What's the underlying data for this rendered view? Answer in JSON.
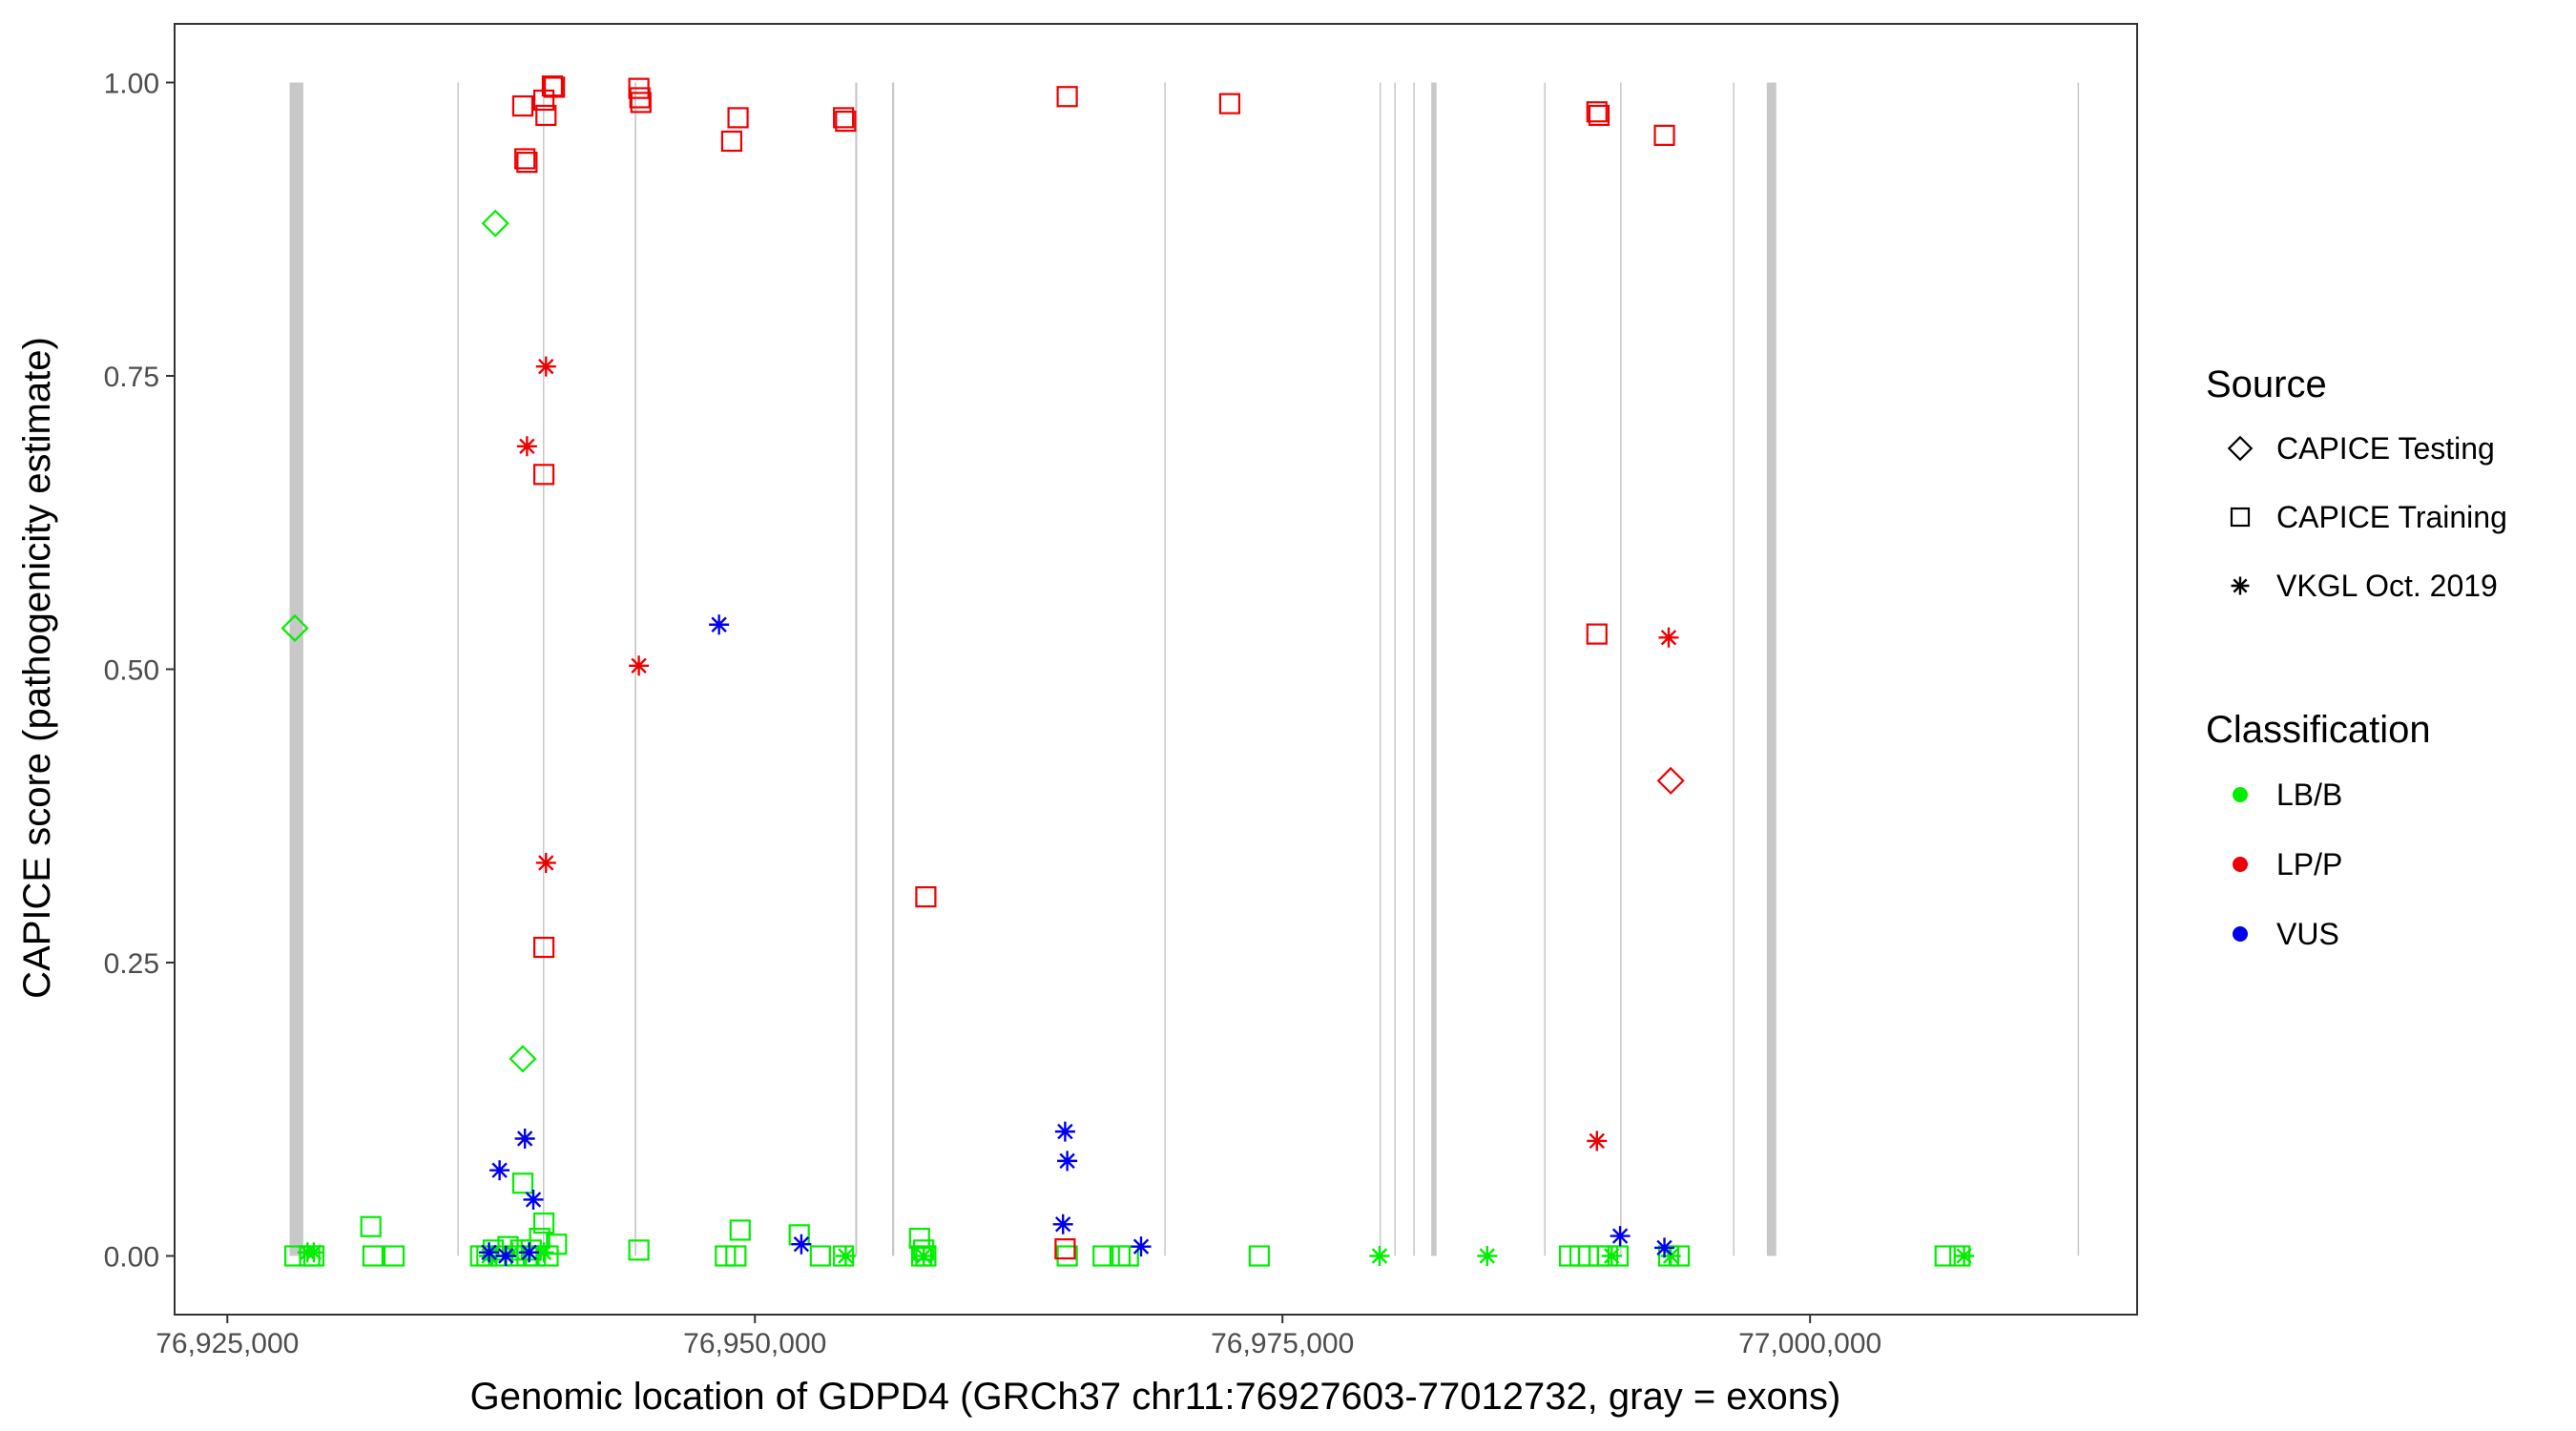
{
  "chart_data": {
    "type": "scatter",
    "xlabel": "Genomic location of GDPD4 (GRCh37 chr11:76927603-77012732, gray = exons)",
    "ylabel": "CAPICE score (pathogenicity estimate)",
    "xlim": [
      76922500,
      77015500
    ],
    "ylim": [
      -0.05,
      1.05
    ],
    "x_ticks": [
      76925000,
      76950000,
      76975000,
      77000000
    ],
    "x_tick_labels": [
      "76,925,000",
      "76,950,000",
      "76,975,000",
      "77,000,000"
    ],
    "y_ticks": [
      0,
      0.25,
      0.5,
      0.75,
      1.0
    ],
    "y_tick_labels": [
      "0.00",
      "0.25",
      "0.50",
      "0.75",
      "1.00"
    ],
    "grid": false,
    "exons": [
      [
        76927950,
        76928600
      ],
      [
        76935900,
        76935960
      ],
      [
        76939950,
        76940010
      ],
      [
        76944300,
        76944380
      ],
      [
        76954750,
        76954850
      ],
      [
        76956500,
        76956600
      ],
      [
        76969400,
        76969450
      ],
      [
        76979600,
        76979650
      ],
      [
        76980300,
        76980360
      ],
      [
        76981200,
        76981260
      ],
      [
        76982050,
        76982300
      ],
      [
        76987400,
        76987450
      ],
      [
        76991000,
        76991060
      ],
      [
        76996350,
        76996400
      ],
      [
        76997950,
        76998400
      ],
      [
        77012680,
        77012732
      ]
    ],
    "legend": {
      "position": "right",
      "source_title": "Source",
      "source": [
        {
          "label": "CAPICE Testing",
          "shape": "diamond"
        },
        {
          "label": "CAPICE Training",
          "shape": "square"
        },
        {
          "label": "VKGL Oct. 2019",
          "shape": "asterisk"
        }
      ],
      "classification_title": "Classification",
      "classification": [
        {
          "label": "LB/B",
          "color": "#00ee00"
        },
        {
          "label": "LP/P",
          "color": "#ee0000"
        },
        {
          "label": "VUS",
          "color": "#0000ee"
        }
      ]
    },
    "series": [
      {
        "source": "CAPICE Testing",
        "classification": "LB/B",
        "points": [
          [
            76928200,
            0.535
          ],
          [
            76937700,
            0.88
          ],
          [
            76939000,
            0.168
          ]
        ]
      },
      {
        "source": "CAPICE Testing",
        "classification": "LP/P",
        "points": [
          [
            76993400,
            0.405
          ]
        ]
      },
      {
        "source": "CAPICE Training",
        "classification": "LB/B",
        "points": [
          [
            76928200,
            0
          ],
          [
            76928900,
            0
          ],
          [
            76929100,
            0
          ],
          [
            76931800,
            0.025
          ],
          [
            76931900,
            0
          ],
          [
            76932900,
            0
          ],
          [
            76937000,
            0
          ],
          [
            76937300,
            0
          ],
          [
            76937600,
            0.005
          ],
          [
            76938000,
            0
          ],
          [
            76938300,
            0.008
          ],
          [
            76938600,
            0
          ],
          [
            76938900,
            0.005
          ],
          [
            76939000,
            0.062
          ],
          [
            76939200,
            0
          ],
          [
            76939400,
            0.005
          ],
          [
            76939600,
            0
          ],
          [
            76939800,
            0.015
          ],
          [
            76940000,
            0.028
          ],
          [
            76940200,
            0
          ],
          [
            76940600,
            0.01
          ],
          [
            76944500,
            0.005
          ],
          [
            76948600,
            0
          ],
          [
            76949100,
            0
          ],
          [
            76949300,
            0.022
          ],
          [
            76952100,
            0.018
          ],
          [
            76953100,
            0
          ],
          [
            76954200,
            0
          ],
          [
            76957800,
            0.015
          ],
          [
            76957900,
            0
          ],
          [
            76958000,
            0.005
          ],
          [
            76958100,
            0
          ],
          [
            76964800,
            0
          ],
          [
            76966500,
            0
          ],
          [
            76967300,
            0
          ],
          [
            76967700,
            0
          ],
          [
            76973900,
            0
          ],
          [
            76988600,
            0
          ],
          [
            76989100,
            0
          ],
          [
            76989500,
            0
          ],
          [
            76990000,
            0
          ],
          [
            76990400,
            0
          ],
          [
            76990900,
            0
          ],
          [
            76993300,
            0
          ],
          [
            76993800,
            0
          ],
          [
            77006400,
            0
          ],
          [
            77007100,
            0
          ]
        ]
      },
      {
        "source": "CAPICE Training",
        "classification": "LP/P",
        "points": [
          [
            76939000,
            0.98
          ],
          [
            76939100,
            0.935
          ],
          [
            76939200,
            0.932
          ],
          [
            76940000,
            0.985
          ],
          [
            76940100,
            0.972
          ],
          [
            76940400,
            0.997
          ],
          [
            76940500,
            0.996
          ],
          [
            76944500,
            0.995
          ],
          [
            76944550,
            0.987
          ],
          [
            76944600,
            0.983
          ],
          [
            76948900,
            0.95
          ],
          [
            76949200,
            0.97
          ],
          [
            76954200,
            0.97
          ],
          [
            76954300,
            0.967
          ],
          [
            76958100,
            0.306
          ],
          [
            76964800,
            0.988
          ],
          [
            76964700,
            0.006
          ],
          [
            76972500,
            0.982
          ],
          [
            76940000,
            0.666
          ],
          [
            76940000,
            0.263
          ],
          [
            76989900,
            0.975
          ],
          [
            76990000,
            0.972
          ],
          [
            76993100,
            0.955
          ],
          [
            76989900,
            0.53
          ]
        ]
      },
      {
        "source": "VKGL Oct. 2019",
        "classification": "LB/B",
        "points": [
          [
            76928800,
            0.003
          ],
          [
            76929100,
            0.003
          ],
          [
            76937400,
            0
          ],
          [
            76938500,
            0.003
          ],
          [
            76940000,
            0.003
          ],
          [
            76954300,
            0
          ],
          [
            76958000,
            0
          ],
          [
            76979600,
            0
          ],
          [
            76984700,
            0
          ],
          [
            76990600,
            0
          ],
          [
            76993400,
            0
          ],
          [
            77007300,
            0
          ]
        ]
      },
      {
        "source": "VKGL Oct. 2019",
        "classification": "LP/P",
        "points": [
          [
            76939200,
            0.69
          ],
          [
            76940100,
            0.758
          ],
          [
            76940100,
            0.335
          ],
          [
            76944500,
            0.503
          ],
          [
            76989900,
            0.098
          ],
          [
            76993300,
            0.527
          ]
        ]
      },
      {
        "source": "VKGL Oct. 2019",
        "classification": "VUS",
        "points": [
          [
            76937400,
            0.003
          ],
          [
            76937900,
            0.073
          ],
          [
            76938200,
            0
          ],
          [
            76939100,
            0.1
          ],
          [
            76939500,
            0.048
          ],
          [
            76939300,
            0.003
          ],
          [
            76948300,
            0.538
          ],
          [
            76952200,
            0.01
          ],
          [
            76964700,
            0.106
          ],
          [
            76964800,
            0.081
          ],
          [
            76964600,
            0.027
          ],
          [
            76968300,
            0.008
          ],
          [
            76991000,
            0.017
          ],
          [
            76993100,
            0.007
          ]
        ]
      }
    ]
  }
}
